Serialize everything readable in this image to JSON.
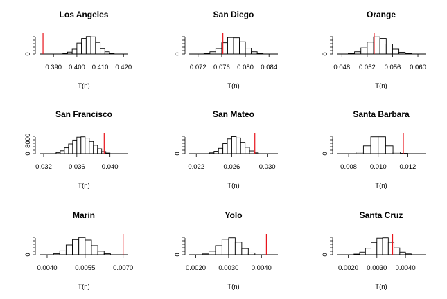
{
  "chart_data": [
    {
      "type": "histogram",
      "title": "Los Angeles",
      "xlabel": "T(n)",
      "ylabel": "",
      "xlim": [
        0.384,
        0.422
      ],
      "ylim": [
        0,
        12000
      ],
      "x_ticks": [
        "0.390",
        "0.400",
        "0.410",
        "0.420"
      ],
      "x_tick_values": [
        0.39,
        0.4,
        0.41,
        0.42
      ],
      "y_ticks": [
        "0"
      ],
      "y_tick_values": [
        0
      ],
      "bin_edges": [
        0.394,
        0.396,
        0.398,
        0.4,
        0.402,
        0.404,
        0.406,
        0.408,
        0.41,
        0.412,
        0.414,
        0.416
      ],
      "counts": [
        300,
        1200,
        3000,
        6800,
        9600,
        10800,
        10600,
        7200,
        3300,
        1400,
        400
      ],
      "observed": 0.3855,
      "observed_color": "#e8141c"
    },
    {
      "type": "histogram",
      "title": "San Diego",
      "xlabel": "T(n)",
      "ylabel": "",
      "xlim": [
        0.0705,
        0.0855
      ],
      "ylim": [
        0,
        12000
      ],
      "x_ticks": [
        "0.072",
        "0.076",
        "0.080",
        "0.084"
      ],
      "x_tick_values": [
        0.072,
        0.076,
        0.08,
        0.084
      ],
      "y_ticks": [
        "0"
      ],
      "y_tick_values": [
        0
      ],
      "bin_edges": [
        0.073,
        0.074,
        0.075,
        0.076,
        0.077,
        0.078,
        0.079,
        0.08,
        0.081,
        0.082,
        0.083
      ],
      "counts": [
        400,
        1400,
        3400,
        7000,
        10200,
        10000,
        7600,
        3600,
        1400,
        400
      ],
      "observed": 0.0762,
      "observed_color": "#e8141c"
    },
    {
      "type": "histogram",
      "title": "Orange",
      "xlabel": "T(n)",
      "ylabel": "",
      "xlim": [
        0.0472,
        0.0612
      ],
      "ylim": [
        0,
        12000
      ],
      "x_ticks": [
        "0.048",
        "0.052",
        "0.056",
        "0.060"
      ],
      "x_tick_values": [
        0.048,
        0.052,
        0.056,
        0.06
      ],
      "y_ticks": [
        "0"
      ],
      "y_tick_values": [
        0
      ],
      "bin_edges": [
        0.049,
        0.05,
        0.051,
        0.052,
        0.053,
        0.054,
        0.055,
        0.056,
        0.057,
        0.058,
        0.059
      ],
      "counts": [
        300,
        1400,
        3800,
        7400,
        10600,
        9600,
        6200,
        3000,
        1100,
        300
      ],
      "observed": 0.0531,
      "observed_color": "#e8141c"
    },
    {
      "type": "histogram",
      "title": "San Francisco",
      "xlabel": "T(n)",
      "ylabel": "",
      "xlim": [
        0.0315,
        0.0422
      ],
      "ylim": [
        0,
        12000
      ],
      "x_ticks": [
        "0.032",
        "0.036",
        "0.040"
      ],
      "x_tick_values": [
        0.032,
        0.036,
        0.04
      ],
      "y_ticks": [
        "0",
        "8000"
      ],
      "y_tick_values": [
        0,
        8000
      ],
      "bin_edges": [
        0.0335,
        0.034,
        0.0345,
        0.035,
        0.0355,
        0.036,
        0.0365,
        0.037,
        0.0375,
        0.038,
        0.0385,
        0.039,
        0.0395,
        0.04
      ],
      "counts": [
        700,
        1800,
        3600,
        6000,
        8400,
        10200,
        10400,
        9600,
        7600,
        5200,
        3000,
        1300,
        400
      ],
      "observed": 0.0393,
      "observed_color": "#e8141c"
    },
    {
      "type": "histogram",
      "title": "San Mateo",
      "xlabel": "T(n)",
      "ylabel": "",
      "xlim": [
        0.0212,
        0.0312
      ],
      "ylim": [
        0,
        12000
      ],
      "x_ticks": [
        "0.022",
        "0.026",
        "0.030"
      ],
      "x_tick_values": [
        0.022,
        0.026,
        0.03
      ],
      "y_ticks": [
        "0"
      ],
      "y_tick_values": [
        0
      ],
      "bin_edges": [
        0.0235,
        0.024,
        0.0245,
        0.025,
        0.0255,
        0.026,
        0.0265,
        0.027,
        0.0275,
        0.028,
        0.0285,
        0.029
      ],
      "counts": [
        500,
        1500,
        3300,
        6200,
        9100,
        10500,
        9700,
        7000,
        3900,
        1700,
        500
      ],
      "observed": 0.0286,
      "observed_color": "#e8141c"
    },
    {
      "type": "histogram",
      "title": "Santa Barbara",
      "xlabel": "T(n)",
      "ylabel": "",
      "xlim": [
        0.0072,
        0.0132
      ],
      "ylim": [
        0,
        12000
      ],
      "x_ticks": [
        "0.008",
        "0.010",
        "0.012"
      ],
      "x_tick_values": [
        0.008,
        0.01,
        0.012
      ],
      "y_ticks": [
        "0"
      ],
      "y_tick_values": [
        0
      ],
      "bin_edges": [
        0.0085,
        0.009,
        0.0095,
        0.01,
        0.0105,
        0.011,
        0.0115,
        0.012
      ],
      "counts": [
        1000,
        4800,
        10400,
        10400,
        4800,
        1000,
        200
      ],
      "observed": 0.0117,
      "observed_color": "#e8141c"
    },
    {
      "type": "histogram",
      "title": "Marin",
      "xlabel": "T(n)",
      "ylabel": "",
      "xlim": [
        0.0037,
        0.0072
      ],
      "ylim": [
        0,
        12000
      ],
      "x_ticks": [
        "0.0040",
        "0.0055",
        "0.0070"
      ],
      "x_tick_values": [
        0.004,
        0.0055,
        0.007
      ],
      "y_ticks": [
        "0"
      ],
      "y_tick_values": [
        0
      ],
      "bin_edges": [
        0.00425,
        0.0045,
        0.00475,
        0.005,
        0.00525,
        0.0055,
        0.00575,
        0.006,
        0.00625,
        0.0065
      ],
      "counts": [
        600,
        2400,
        6000,
        9300,
        10600,
        9000,
        5600,
        2200,
        600
      ],
      "observed": 0.007,
      "observed_color": "#e8141c"
    },
    {
      "type": "histogram",
      "title": "Yolo",
      "xlabel": "T(n)",
      "ylabel": "",
      "xlim": [
        0.0018,
        0.0045
      ],
      "ylim": [
        0,
        12000
      ],
      "x_ticks": [
        "0.0020",
        "0.0030",
        "0.0040"
      ],
      "x_tick_values": [
        0.002,
        0.003,
        0.004
      ],
      "y_ticks": [
        "0"
      ],
      "y_tick_values": [
        0
      ],
      "bin_edges": [
        0.0022,
        0.0024,
        0.0026,
        0.0028,
        0.003,
        0.0032,
        0.0034,
        0.0036,
        0.0038
      ],
      "counts": [
        500,
        2200,
        5600,
        9500,
        10400,
        7800,
        3800,
        1100
      ],
      "observed": 0.00415,
      "observed_color": "#e8141c"
    },
    {
      "type": "histogram",
      "title": "Santa Cruz",
      "xlabel": "T(n)",
      "ylabel": "",
      "xlim": [
        0.0016,
        0.0047
      ],
      "ylim": [
        0,
        12000
      ],
      "x_ticks": [
        "0.0020",
        "0.0030",
        "0.0040"
      ],
      "x_tick_values": [
        0.002,
        0.003,
        0.004
      ],
      "y_ticks": [
        "0"
      ],
      "y_tick_values": [
        0
      ],
      "bin_edges": [
        0.0022,
        0.0024,
        0.0026,
        0.0028,
        0.003,
        0.0032,
        0.0034,
        0.0036,
        0.0038,
        0.004,
        0.0042
      ],
      "counts": [
        400,
        1600,
        4000,
        7600,
        10200,
        10400,
        7700,
        4200,
        1600,
        500
      ],
      "observed": 0.00355,
      "observed_color": "#e8141c"
    }
  ]
}
